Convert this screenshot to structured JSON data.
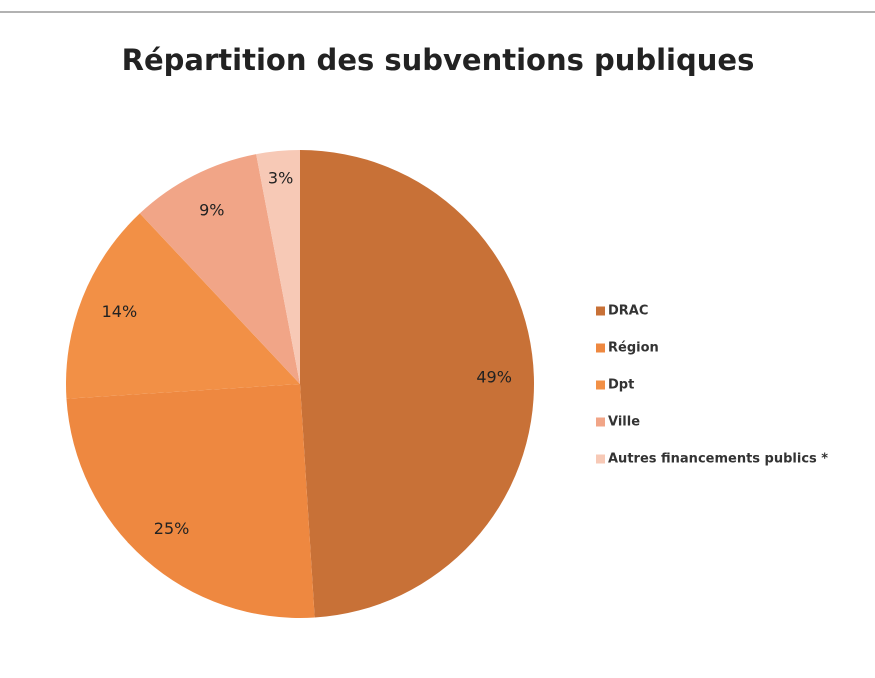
{
  "chart_data": {
    "type": "pie",
    "title": "Répartition des subventions publiques",
    "categories": [
      "DRAC",
      "Région",
      "Dpt",
      "Ville",
      "Autres financements publics *"
    ],
    "values": [
      49,
      25,
      14,
      9,
      3
    ],
    "value_labels": [
      "49%",
      "25%",
      "14%",
      "9%",
      "3%"
    ],
    "colors": [
      "#c87137",
      "#ee8840",
      "#f29046",
      "#f1a587",
      "#f7c9b6"
    ],
    "legend": "right"
  }
}
